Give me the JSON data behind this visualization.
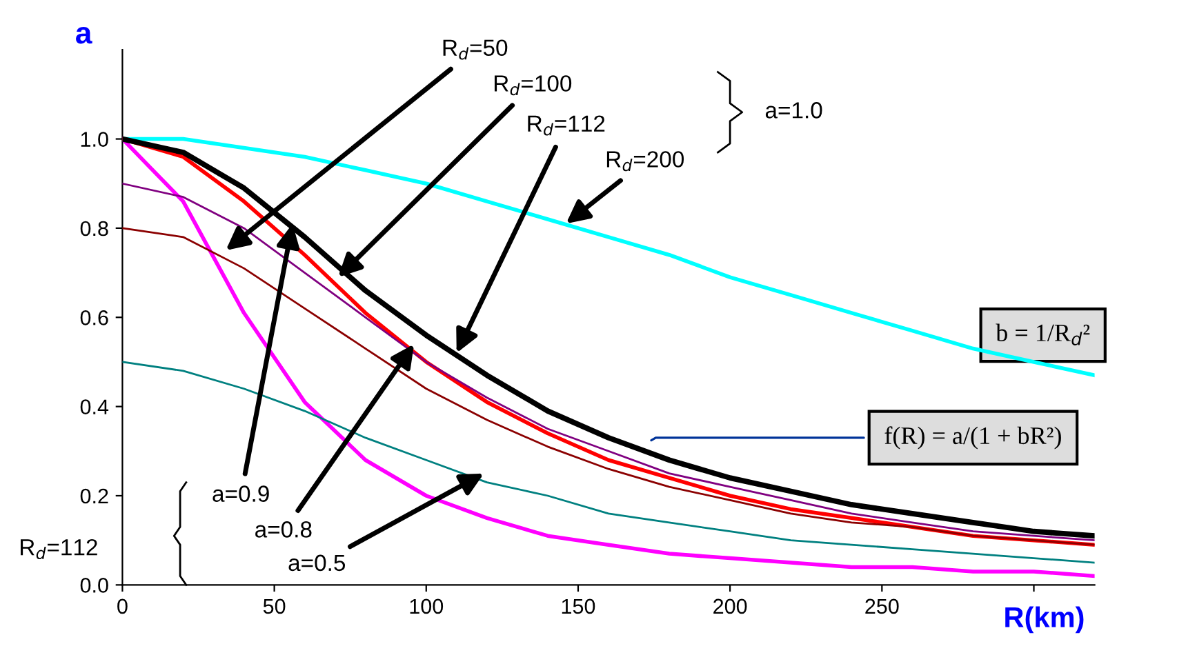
{
  "chart_data": {
    "type": "line",
    "xlabel": "R(km)",
    "ylabel": "a",
    "x": [
      0,
      20,
      40,
      60,
      80,
      100,
      120,
      140,
      160,
      180,
      200,
      220,
      240,
      260,
      280,
      300,
      320
    ],
    "series": [
      {
        "color": "#00ffff",
        "values": [
          1.0,
          1.0,
          0.98,
          0.96,
          0.93,
          0.9,
          0.86,
          0.82,
          0.78,
          0.74,
          0.69,
          0.65,
          0.61,
          0.57,
          0.53,
          0.5,
          0.47
        ]
      },
      {
        "color": "#008080",
        "values": [
          0.5,
          0.48,
          0.44,
          0.39,
          0.33,
          0.28,
          0.23,
          0.2,
          0.16,
          0.14,
          0.12,
          0.1,
          0.09,
          0.08,
          0.07,
          0.06,
          0.05
        ]
      },
      {
        "color": "#8b0000",
        "values": [
          0.8,
          0.78,
          0.71,
          0.62,
          0.53,
          0.44,
          0.37,
          0.31,
          0.26,
          0.22,
          0.19,
          0.16,
          0.14,
          0.13,
          0.11,
          0.1,
          0.09
        ]
      },
      {
        "color": "#800080",
        "values": [
          0.9,
          0.87,
          0.8,
          0.7,
          0.6,
          0.5,
          0.42,
          0.35,
          0.3,
          0.25,
          0.22,
          0.19,
          0.16,
          0.14,
          0.12,
          0.11,
          0.1
        ]
      },
      {
        "color": "#ff00ff",
        "values": [
          1.0,
          0.86,
          0.61,
          0.41,
          0.28,
          0.2,
          0.15,
          0.11,
          0.09,
          0.07,
          0.06,
          0.05,
          0.04,
          0.04,
          0.03,
          0.03,
          0.02
        ]
      },
      {
        "color": "#ff0000",
        "values": [
          1.0,
          0.96,
          0.86,
          0.74,
          0.61,
          0.5,
          0.41,
          0.34,
          0.28,
          0.24,
          0.2,
          0.17,
          0.15,
          0.13,
          0.11,
          0.1,
          0.09
        ]
      },
      {
        "color": "#000000",
        "values": [
          1.0,
          0.97,
          0.89,
          0.78,
          0.66,
          0.56,
          0.47,
          0.39,
          0.33,
          0.28,
          0.24,
          0.21,
          0.18,
          0.16,
          0.14,
          0.12,
          0.11
        ]
      }
    ],
    "xlim": [
      0,
      320
    ],
    "ylim": [
      0,
      1.2
    ],
    "xticks": [
      0,
      50,
      100,
      150,
      200,
      250,
      {
        "value": 300,
        "label": null
      }
    ],
    "yticks": [
      {
        "value": 0,
        "label": "0.0"
      },
      {
        "value": 0.2,
        "label": "0.2"
      },
      {
        "value": 0.4,
        "label": "0.4"
      },
      {
        "value": 0.6,
        "label": "0.6"
      },
      {
        "value": 0.8,
        "label": "0.8"
      },
      {
        "value": 1.0,
        "label": "1.0"
      }
    ],
    "grid": false,
    "legend": false,
    "marker": "none",
    "line_style": "solid",
    "annotations": [
      {
        "text": "R$_{d}$=50",
        "x": 34,
        "y": 0.75
      },
      {
        "text": "R$_{d}$=100",
        "x": 71,
        "y": 0.69
      },
      {
        "text": "R$_{d}$=112",
        "x": 110,
        "y": 0.52
      },
      {
        "text": "R$_{d}$=200",
        "x": 146,
        "y": 0.81
      },
      {
        "text": "a=0.9",
        "x": 56,
        "y": 0.81
      },
      {
        "text": "a=0.8",
        "x": 96,
        "y": 0.54
      },
      {
        "text": "a=0.5",
        "x": 119,
        "y": 0.25
      },
      "a=1.0",
      "R$_{d}$=112",
      "b = 1/R$_{d}$²",
      {
        "text": "f(R) = a/(1 + bR²)",
        "x": 173,
        "y": 0.32
      }
    ]
  }
}
